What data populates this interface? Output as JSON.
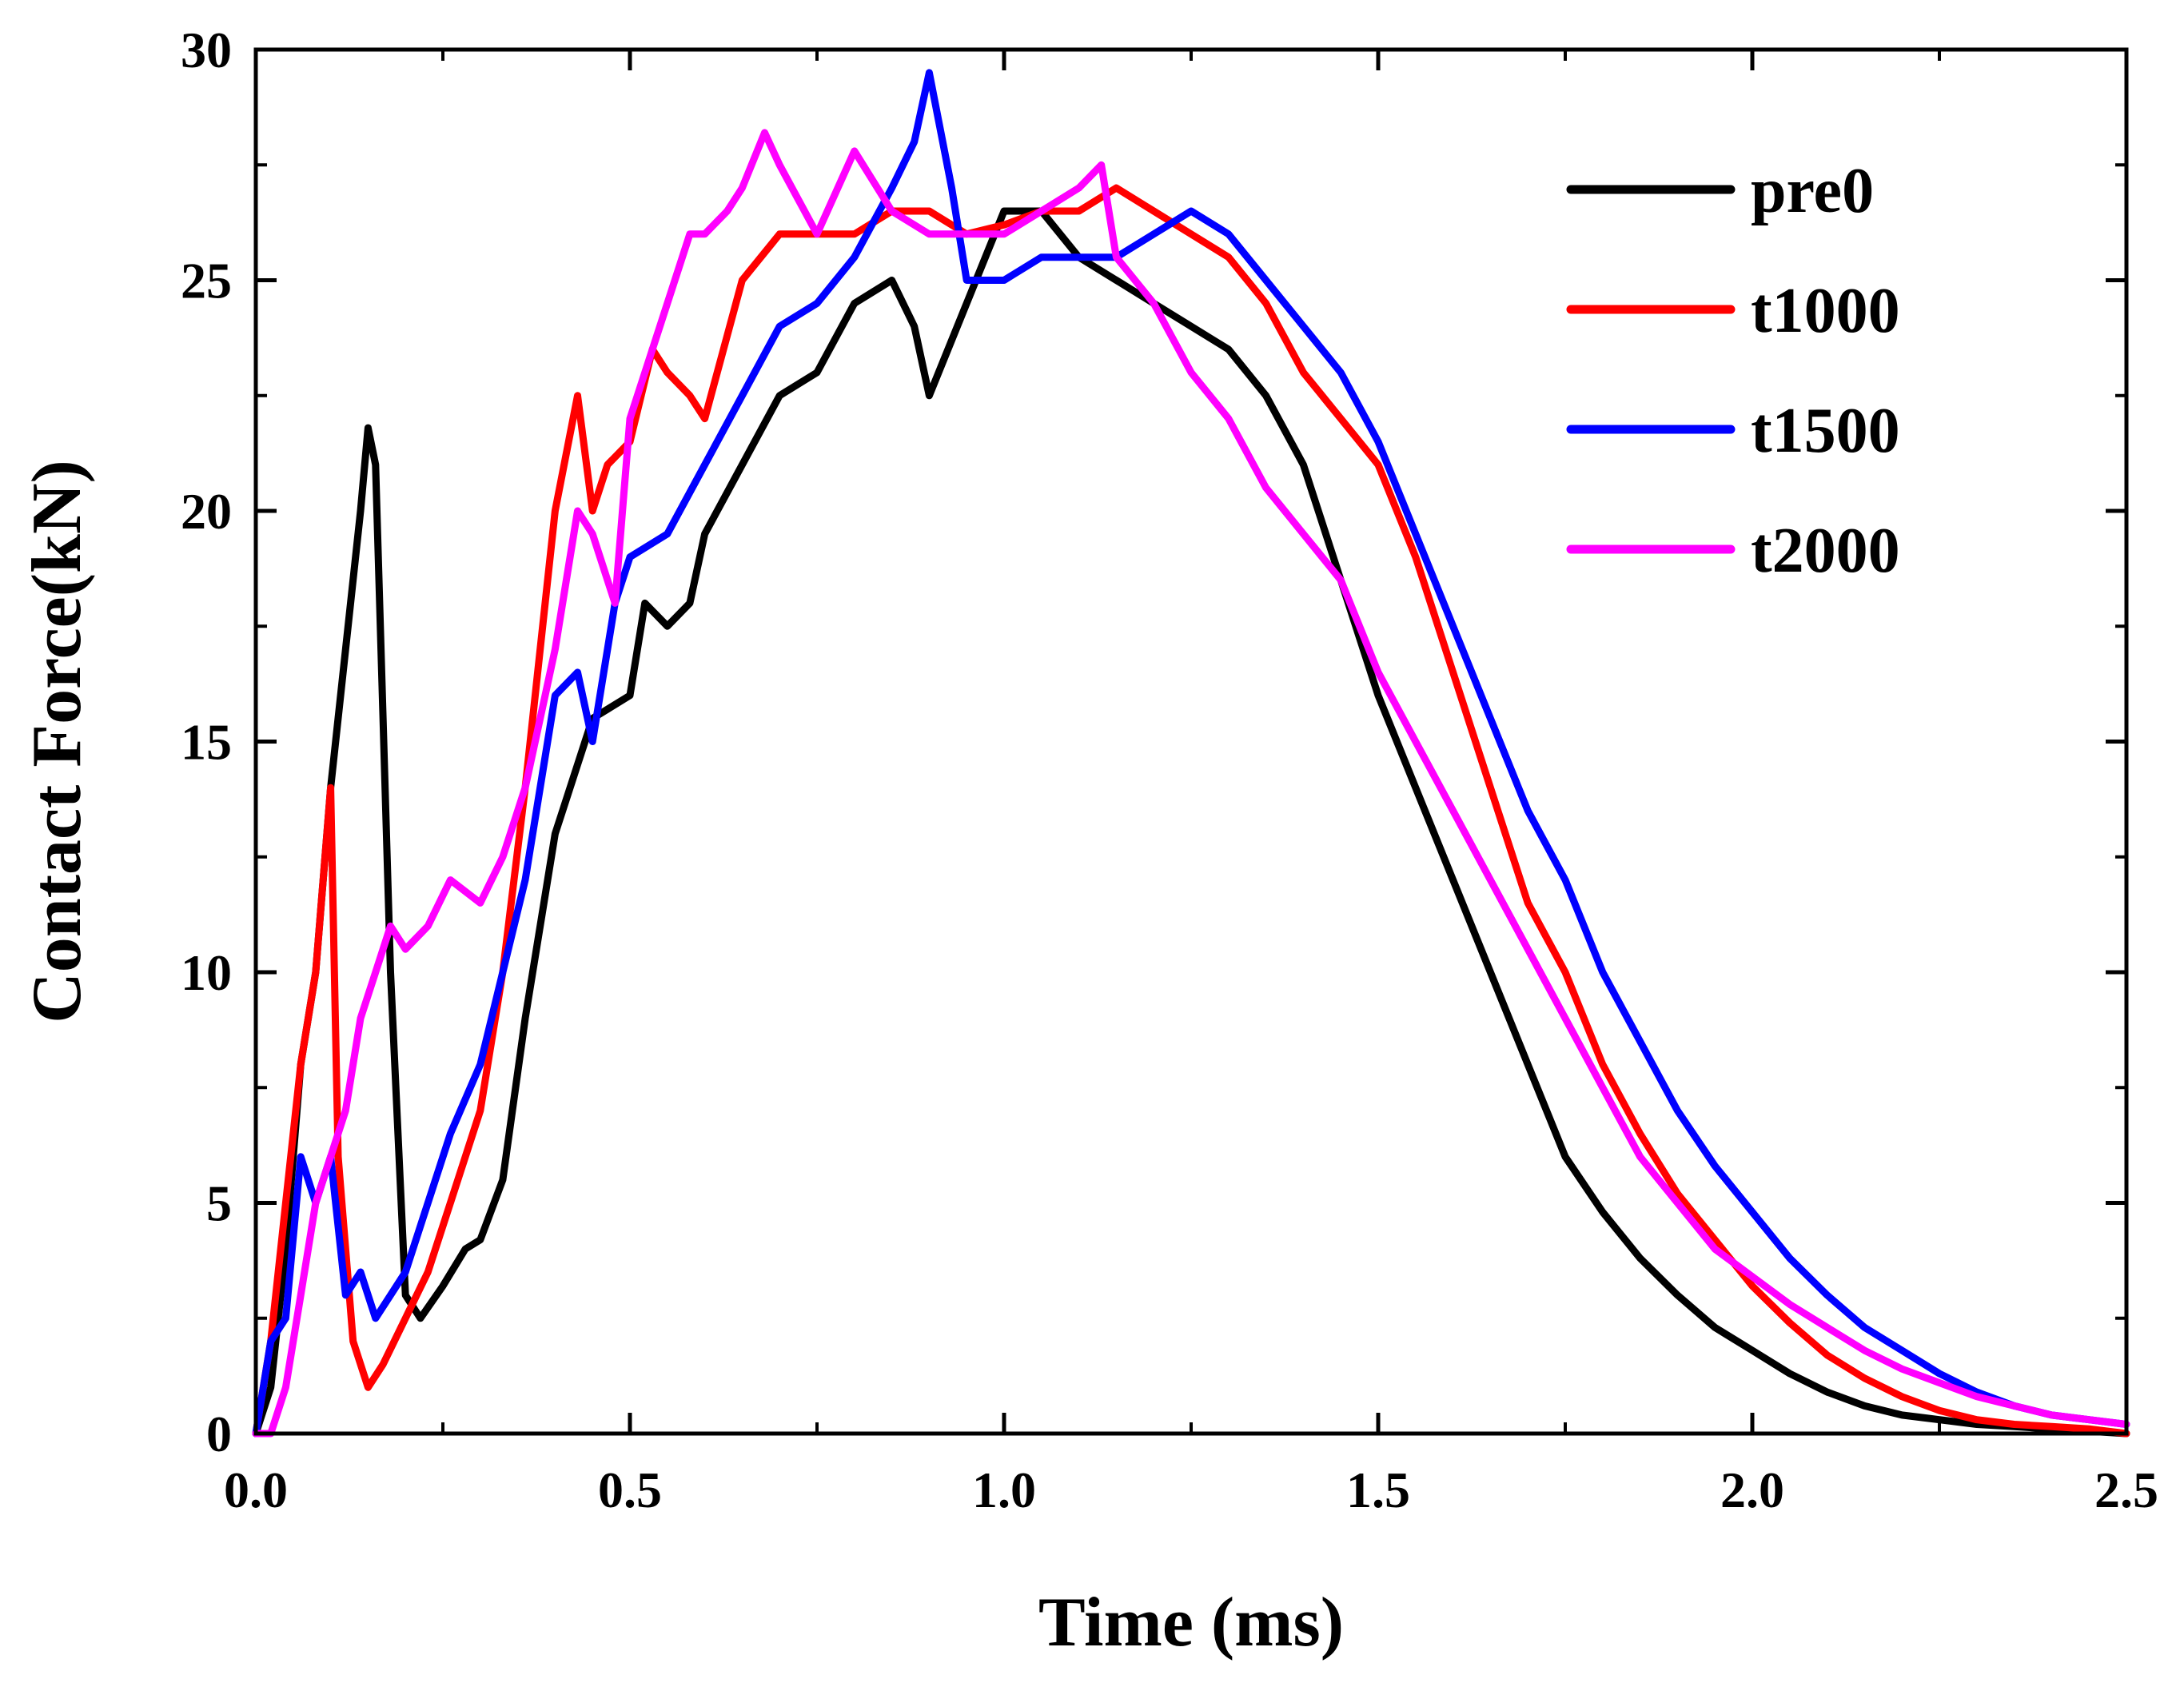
{
  "chart_data": {
    "type": "line",
    "title": "",
    "xlabel": "Time (ms)",
    "ylabel": "Contact Force(kN)",
    "xlim": [
      0,
      2.5
    ],
    "ylim": [
      0,
      30
    ],
    "xticks": [
      0.0,
      0.5,
      1.0,
      1.5,
      2.0,
      2.5
    ],
    "xtick_labels": [
      "0.0",
      "0.5",
      "1.0",
      "1.5",
      "2.0",
      "2.5"
    ],
    "yticks": [
      0,
      5,
      10,
      15,
      20,
      25,
      30
    ],
    "ytick_labels": [
      "0",
      "5",
      "10",
      "15",
      "20",
      "25",
      "30"
    ],
    "grid": false,
    "legend_position": "top-right",
    "series": [
      {
        "name": "pre0",
        "color": "#000000",
        "x": [
          0,
          0.02,
          0.04,
          0.06,
          0.08,
          0.1,
          0.12,
          0.14,
          0.15,
          0.16,
          0.18,
          0.2,
          0.22,
          0.25,
          0.28,
          0.3,
          0.33,
          0.36,
          0.4,
          0.45,
          0.5,
          0.52,
          0.55,
          0.58,
          0.6,
          0.65,
          0.7,
          0.75,
          0.8,
          0.85,
          0.88,
          0.9,
          0.95,
          1.0,
          1.05,
          1.1,
          1.15,
          1.2,
          1.25,
          1.3,
          1.35,
          1.4,
          1.45,
          1.5,
          1.55,
          1.6,
          1.65,
          1.7,
          1.75,
          1.8,
          1.85,
          1.9,
          1.95,
          2.0,
          2.05,
          2.1,
          2.15,
          2.2,
          2.25,
          2.3,
          2.35,
          2.4,
          2.45,
          2.5
        ],
        "y": [
          0,
          1,
          4,
          8,
          10,
          14,
          17,
          20,
          21.8,
          21,
          10,
          3,
          2.5,
          3.2,
          4,
          4.2,
          5.5,
          9,
          13,
          15.5,
          16,
          18,
          17.5,
          18,
          19.5,
          21,
          22.5,
          23,
          24.5,
          25,
          24,
          22.5,
          24.5,
          26.5,
          26.5,
          25.5,
          25,
          24.5,
          24,
          23.5,
          22.5,
          21,
          18.5,
          16,
          14,
          12,
          10,
          8,
          6,
          4.8,
          3.8,
          3,
          2.3,
          1.8,
          1.3,
          0.9,
          0.6,
          0.4,
          0.3,
          0.2,
          0.15,
          0.1,
          0.05,
          0
        ]
      },
      {
        "name": "t1000",
        "color": "#ff0000",
        "x": [
          0,
          0.02,
          0.04,
          0.06,
          0.08,
          0.1,
          0.11,
          0.13,
          0.15,
          0.17,
          0.2,
          0.23,
          0.26,
          0.3,
          0.33,
          0.36,
          0.4,
          0.43,
          0.45,
          0.47,
          0.5,
          0.53,
          0.55,
          0.58,
          0.6,
          0.65,
          0.7,
          0.75,
          0.8,
          0.85,
          0.9,
          0.95,
          1.0,
          1.05,
          1.1,
          1.15,
          1.2,
          1.25,
          1.3,
          1.35,
          1.4,
          1.45,
          1.5,
          1.55,
          1.6,
          1.65,
          1.7,
          1.75,
          1.8,
          1.85,
          1.9,
          1.95,
          2.0,
          2.05,
          2.1,
          2.15,
          2.2,
          2.25,
          2.3,
          2.35,
          2.4,
          2.45,
          2.5
        ],
        "y": [
          0,
          2,
          5,
          8,
          10,
          14,
          6,
          2,
          1,
          1.5,
          2.5,
          3.5,
          5,
          7,
          10,
          14,
          20,
          22.5,
          20,
          21,
          21.5,
          23.5,
          23,
          22.5,
          22,
          25,
          26,
          26,
          26,
          26.5,
          26.5,
          26,
          26.2,
          26.5,
          26.5,
          27,
          26.5,
          26,
          25.5,
          24.5,
          23,
          22,
          21,
          19,
          16.5,
          14,
          11.5,
          10,
          8,
          6.5,
          5.2,
          4.2,
          3.2,
          2.4,
          1.7,
          1.2,
          0.8,
          0.5,
          0.3,
          0.2,
          0.15,
          0.1,
          0
        ]
      },
      {
        "name": "t1500",
        "color": "#0000ff",
        "x": [
          0,
          0.02,
          0.04,
          0.06,
          0.08,
          0.1,
          0.12,
          0.14,
          0.16,
          0.18,
          0.2,
          0.23,
          0.26,
          0.3,
          0.33,
          0.36,
          0.4,
          0.43,
          0.45,
          0.48,
          0.5,
          0.55,
          0.6,
          0.65,
          0.7,
          0.75,
          0.8,
          0.85,
          0.88,
          0.9,
          0.93,
          0.95,
          1.0,
          1.05,
          1.1,
          1.15,
          1.2,
          1.25,
          1.3,
          1.35,
          1.4,
          1.45,
          1.5,
          1.55,
          1.6,
          1.65,
          1.7,
          1.75,
          1.8,
          1.85,
          1.9,
          1.95,
          2.0,
          2.05,
          2.1,
          2.15,
          2.2,
          2.25,
          2.3,
          2.35,
          2.4,
          2.45,
          2.5
        ],
        "y": [
          0,
          2,
          2.5,
          6,
          5,
          6,
          3,
          3.5,
          2.5,
          3,
          3.5,
          5,
          6.5,
          8,
          10,
          12,
          16,
          16.5,
          15,
          18,
          19,
          19.5,
          21,
          22.5,
          24,
          24.5,
          25.5,
          27,
          28,
          29.5,
          27,
          25,
          25,
          25.5,
          25.5,
          25.5,
          26,
          26.5,
          26,
          25,
          24,
          23,
          21.5,
          19.5,
          17.5,
          15.5,
          13.5,
          12,
          10,
          8.5,
          7,
          5.8,
          4.8,
          3.8,
          3,
          2.3,
          1.8,
          1.3,
          0.9,
          0.6,
          0.4,
          0.3,
          0.2
        ]
      },
      {
        "name": "t2000",
        "color": "#ff00ff",
        "x": [
          0,
          0.02,
          0.04,
          0.06,
          0.08,
          0.1,
          0.12,
          0.14,
          0.16,
          0.18,
          0.2,
          0.23,
          0.26,
          0.3,
          0.33,
          0.36,
          0.4,
          0.43,
          0.45,
          0.48,
          0.5,
          0.53,
          0.55,
          0.58,
          0.6,
          0.63,
          0.65,
          0.68,
          0.7,
          0.75,
          0.8,
          0.85,
          0.9,
          0.95,
          1.0,
          1.05,
          1.1,
          1.13,
          1.15,
          1.2,
          1.25,
          1.3,
          1.35,
          1.4,
          1.45,
          1.5,
          1.55,
          1.6,
          1.65,
          1.7,
          1.75,
          1.8,
          1.85,
          1.9,
          1.95,
          2.0,
          2.05,
          2.1,
          2.15,
          2.2,
          2.25,
          2.3,
          2.35,
          2.4,
          2.45,
          2.5
        ],
        "y": [
          0,
          0,
          1,
          3,
          5,
          6,
          7,
          9,
          10,
          11,
          10.5,
          11,
          12,
          11.5,
          12.5,
          14,
          17,
          20,
          19.5,
          18,
          22,
          23.5,
          24.5,
          26,
          26,
          26.5,
          27,
          28.2,
          27.5,
          26,
          27.8,
          26.5,
          26,
          26,
          26,
          26.5,
          27,
          27.5,
          25.5,
          24.5,
          23,
          22,
          20.5,
          19.5,
          18.5,
          16.5,
          15,
          13.5,
          12,
          10.5,
          9,
          7.5,
          6,
          5,
          4,
          3.4,
          2.8,
          2.3,
          1.8,
          1.4,
          1.1,
          0.8,
          0.6,
          0.4,
          0.3,
          0.2
        ]
      }
    ]
  }
}
